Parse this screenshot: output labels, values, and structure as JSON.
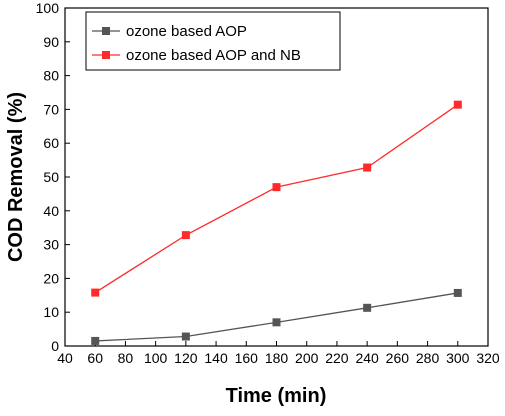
{
  "chart_data": {
    "type": "line",
    "xlabel": "Time (min)",
    "ylabel": "COD Removal (%)",
    "xlim": [
      40,
      320
    ],
    "ylim": [
      0,
      100
    ],
    "xticks": [
      40,
      60,
      80,
      100,
      120,
      140,
      160,
      180,
      200,
      220,
      240,
      260,
      280,
      300,
      320
    ],
    "yticks": [
      0,
      10,
      20,
      30,
      40,
      50,
      60,
      70,
      80,
      90,
      100
    ],
    "x": [
      60,
      120,
      180,
      240,
      300
    ],
    "series": [
      {
        "name": "ozone based AOP",
        "color": "#555555",
        "marker": "square",
        "values": [
          1.5,
          2.8,
          7.0,
          11.3,
          15.7
        ]
      },
      {
        "name": "ozone based AOP and NB",
        "color": "#ff2a2a",
        "marker": "square",
        "values": [
          15.8,
          32.8,
          47.0,
          52.8,
          71.4
        ]
      }
    ],
    "legend": "top-left",
    "grid": false
  }
}
